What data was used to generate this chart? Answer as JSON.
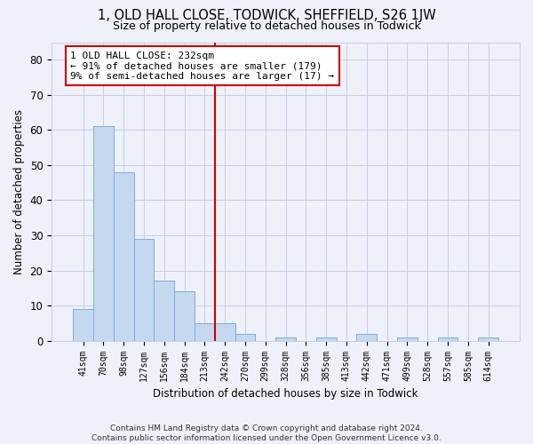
{
  "title": "1, OLD HALL CLOSE, TODWICK, SHEFFIELD, S26 1JW",
  "subtitle": "Size of property relative to detached houses in Todwick",
  "xlabel": "Distribution of detached houses by size in Todwick",
  "ylabel": "Number of detached properties",
  "categories": [
    "41sqm",
    "70sqm",
    "98sqm",
    "127sqm",
    "156sqm",
    "184sqm",
    "213sqm",
    "242sqm",
    "270sqm",
    "299sqm",
    "328sqm",
    "356sqm",
    "385sqm",
    "413sqm",
    "442sqm",
    "471sqm",
    "499sqm",
    "528sqm",
    "557sqm",
    "585sqm",
    "614sqm"
  ],
  "values": [
    9,
    61,
    48,
    29,
    17,
    14,
    5,
    5,
    2,
    0,
    1,
    0,
    1,
    0,
    2,
    0,
    1,
    0,
    1,
    0,
    1
  ],
  "bar_color": "#c5d8f0",
  "bar_edge_color": "#7bafd4",
  "property_line_x": 6.5,
  "annotation_line1": "1 OLD HALL CLOSE: 232sqm",
  "annotation_line2": "← 91% of detached houses are smaller (179)",
  "annotation_line3": "9% of semi-detached houses are larger (17) →",
  "annotation_box_color": "#ffffff",
  "annotation_box_edge_color": "#cc0000",
  "property_line_color": "#cc0000",
  "ylim": [
    0,
    85
  ],
  "yticks": [
    0,
    10,
    20,
    30,
    40,
    50,
    60,
    70,
    80
  ],
  "footer": "Contains HM Land Registry data © Crown copyright and database right 2024.\nContains public sector information licensed under the Open Government Licence v3.0.",
  "background_color": "#eef1fa",
  "grid_color": "#c8cfe8"
}
